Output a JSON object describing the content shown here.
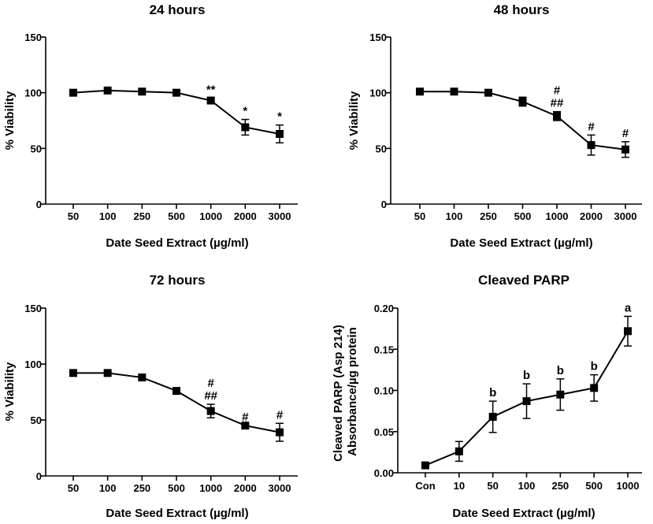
{
  "chart_data": [
    {
      "id": "p24",
      "type": "line",
      "title": "24 hours",
      "ylabel": "% Viability",
      "xlabel": "Date Seed  Extract (µg/ml)",
      "ylim": [
        0,
        150
      ],
      "yticks": [
        0,
        50,
        100,
        150
      ],
      "ytick_labels": [
        "0",
        "50",
        "100",
        "150"
      ],
      "categories": [
        "50",
        "100",
        "250",
        "500",
        "1000",
        "2000",
        "3000"
      ],
      "values": [
        100,
        102,
        101,
        100,
        93,
        69,
        63
      ],
      "errors": [
        0,
        0,
        0,
        0,
        2,
        7,
        8
      ],
      "annotations": [
        "",
        "",
        "",
        "",
        "**",
        "*",
        "*"
      ]
    },
    {
      "id": "p48",
      "type": "line",
      "title": "48 hours",
      "ylabel": "% Viability",
      "xlabel": "Date Seed  Extract (µg/ml)",
      "ylim": [
        0,
        150
      ],
      "yticks": [
        0,
        50,
        100,
        150
      ],
      "ytick_labels": [
        "0",
        "50",
        "100",
        "150"
      ],
      "categories": [
        "50",
        "100",
        "250",
        "500",
        "1000",
        "2000",
        "3000"
      ],
      "values": [
        101,
        101,
        100,
        92,
        79,
        53,
        49
      ],
      "errors": [
        0,
        0,
        0,
        4,
        4,
        9,
        7
      ],
      "annotations": [
        "",
        "",
        "",
        "",
        "#\n##",
        "#",
        "#"
      ]
    },
    {
      "id": "p72",
      "type": "line",
      "title": "72 hours",
      "ylabel": "% Viability",
      "xlabel": "Date Seed  Extract (µg/ml)",
      "ylim": [
        0,
        150
      ],
      "yticks": [
        0,
        50,
        100,
        150
      ],
      "ytick_labels": [
        "0",
        "50",
        "100",
        "150"
      ],
      "categories": [
        "50",
        "100",
        "250",
        "500",
        "1000",
        "2000",
        "3000"
      ],
      "values": [
        92,
        92,
        88,
        76,
        58,
        45,
        39
      ],
      "errors": [
        0,
        0,
        0,
        0,
        6,
        0,
        8
      ],
      "annotations": [
        "",
        "",
        "",
        "",
        "#\n##",
        "#",
        "#"
      ]
    },
    {
      "id": "parp",
      "type": "line",
      "title": "Cleaved PARP",
      "ylabel": "Cleaved PARP (Asp 214)\nAbsorbance/µg protein",
      "xlabel": "Date Seed  Extract (µg/ml)",
      "ylim": [
        0,
        0.2
      ],
      "yticks": [
        0,
        0.05,
        0.1,
        0.15,
        0.2
      ],
      "ytick_labels": [
        "0.00",
        "0.05",
        "0.10",
        "0.15",
        "0.20"
      ],
      "categories": [
        "Con",
        "10",
        "50",
        "100",
        "250",
        "500",
        "1000"
      ],
      "values": [
        0.009,
        0.026,
        0.068,
        0.087,
        0.095,
        0.103,
        0.172
      ],
      "errors": [
        0,
        0.012,
        0.019,
        0.021,
        0.019,
        0.016,
        0.018
      ],
      "annotations": [
        "",
        "",
        "b",
        "b",
        "b",
        "b",
        "a"
      ]
    }
  ]
}
